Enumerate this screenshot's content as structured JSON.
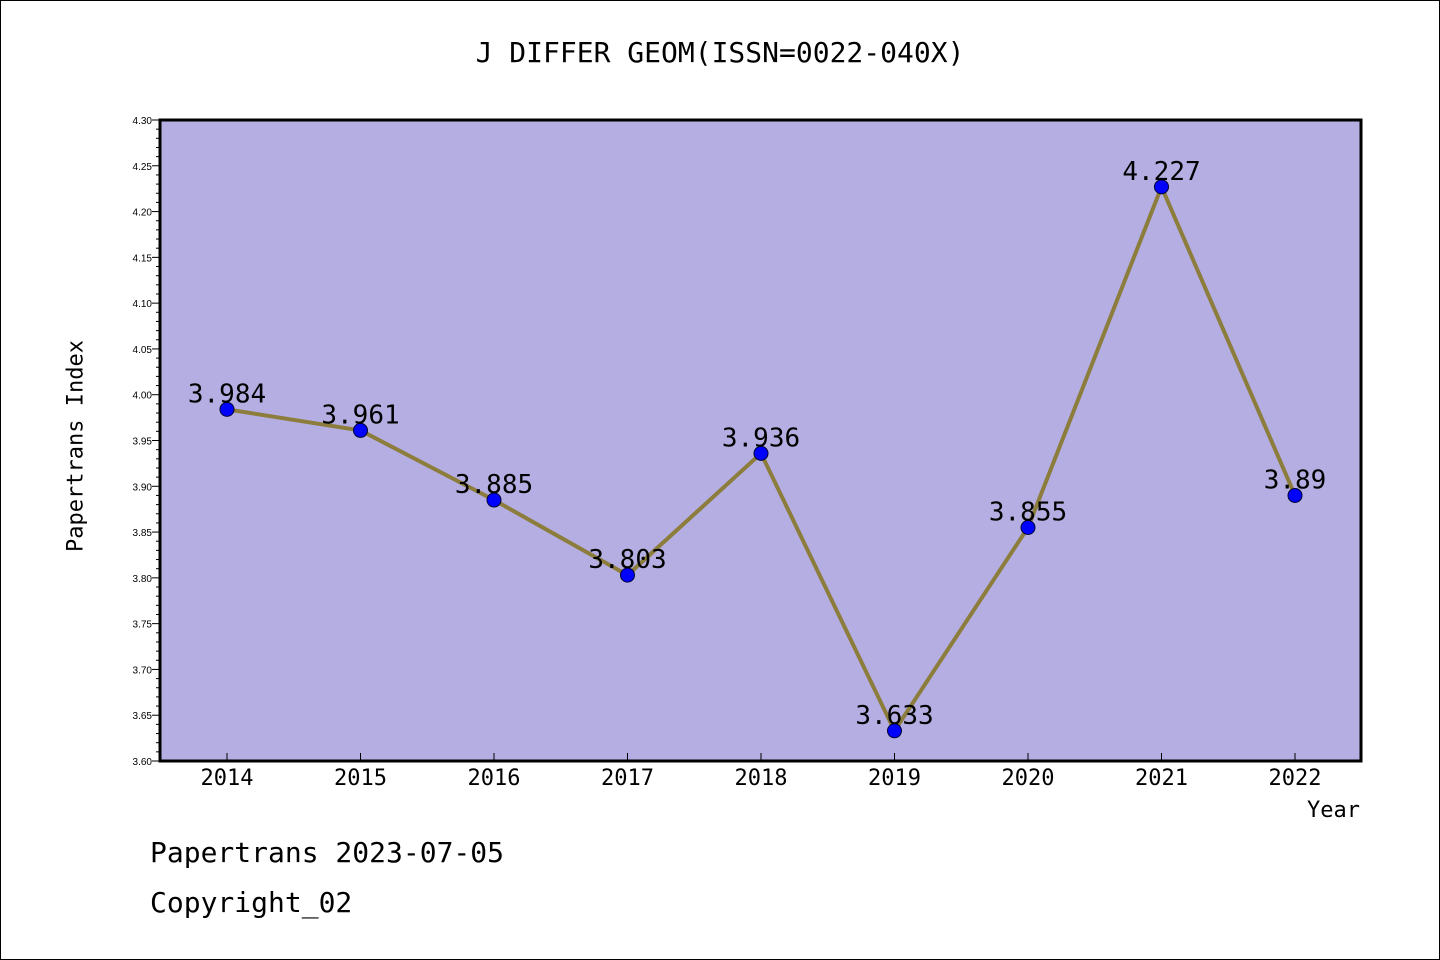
{
  "chart_data": {
    "type": "line",
    "title": "J DIFFER GEOM(ISSN=0022-040X)",
    "xlabel": "Year",
    "ylabel": "Papertrans Index",
    "categories": [
      "2014",
      "2015",
      "2016",
      "2017",
      "2018",
      "2019",
      "2020",
      "2021",
      "2022"
    ],
    "series": [
      {
        "values": [
          3.984,
          3.961,
          3.885,
          3.803,
          3.936,
          3.633,
          3.855,
          4.227,
          3.89
        ],
        "labels": [
          "3.984",
          "3.961",
          "3.885",
          "3.803",
          "3.936",
          "3.633",
          "3.855",
          "4.227",
          "3.89"
        ]
      }
    ],
    "ylim": [
      3.6,
      4.3
    ],
    "yticks": [
      "3.60",
      "3.65",
      "3.70",
      "3.75",
      "3.80",
      "3.85",
      "3.90",
      "3.95",
      "4.00",
      "4.05",
      "4.10",
      "4.15",
      "4.20",
      "4.25",
      "4.30"
    ],
    "grid": false,
    "colors": {
      "plot_background": "#b4aee2",
      "line": "#8c7d3c",
      "marker": "#0000ff"
    }
  },
  "footer": {
    "line1": "Papertrans 2023-07-05",
    "line2": "Copyright_02"
  }
}
